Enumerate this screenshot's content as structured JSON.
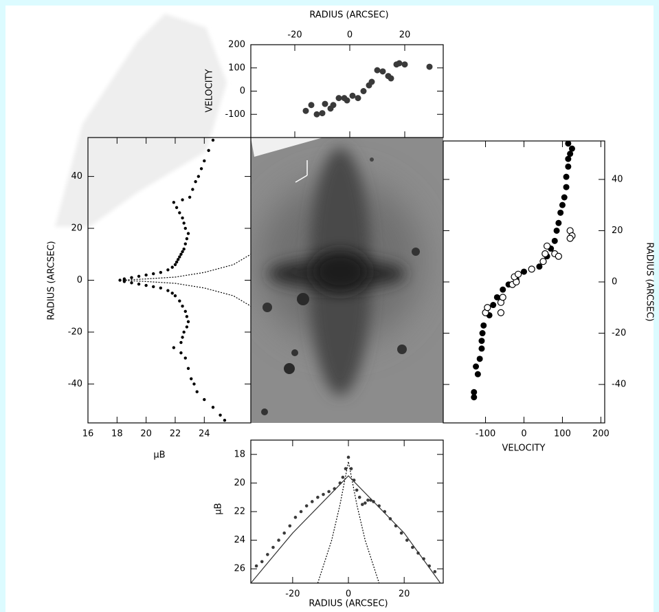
{
  "chart_data": [
    {
      "type": "scatter",
      "xlabel": "RADIUS (ARCSEC)",
      "ylabel": "VELOCITY",
      "xlim": [
        -36,
        34
      ],
      "ylim": [
        -200,
        200
      ],
      "xticks": [
        -20,
        0,
        20
      ],
      "yticks": [
        -100,
        0,
        100,
        200
      ],
      "xaxis": "top",
      "yaxis": "left",
      "series": [
        {
          "mode": "markers",
          "marker": "filled",
          "color": "#3a3a3a",
          "x": [
            -16,
            -14,
            -12,
            -10,
            -9,
            -7,
            -6,
            -4,
            -2,
            -1,
            1,
            3,
            5,
            7,
            8,
            10,
            12,
            14,
            15,
            17,
            18,
            20,
            29
          ],
          "y": [
            -85,
            -60,
            -100,
            -95,
            -55,
            -75,
            -60,
            -30,
            -30,
            -40,
            -20,
            -30,
            0,
            25,
            40,
            90,
            85,
            65,
            55,
            115,
            120,
            115,
            105
          ]
        }
      ]
    },
    {
      "type": "scatter",
      "xlabel": "μB",
      "ylabel": "RADIUS (ARCSEC)",
      "xlim": [
        16,
        27.2
      ],
      "ylim": [
        -55,
        55
      ],
      "xticks": [
        16,
        18,
        20,
        22,
        24
      ],
      "yticks": [
        -40,
        -20,
        0,
        20,
        40
      ],
      "xaxis": "bottom",
      "yaxis": "left",
      "series": [
        {
          "mode": "markers",
          "marker": "filled",
          "color": "#000000",
          "x": [
            18.2,
            18.5,
            19,
            19.5,
            20,
            20.5,
            21,
            21.5,
            21.8,
            22,
            22.1,
            22.2,
            22.3,
            22.4,
            22.5,
            22.6,
            22.7,
            22.8,
            22.9,
            22.7,
            22.6,
            22.5,
            22.3,
            22.1,
            21.9,
            22.5,
            23,
            23.2,
            23.4,
            23.6,
            23.8,
            24,
            24.3,
            24.6,
            18.5,
            19,
            19.5,
            20,
            20.5,
            21,
            21.5,
            21.8,
            22,
            22.3,
            22.5,
            22.7,
            22.8,
            22.9,
            22.8,
            22.6,
            22.5,
            22.4,
            21.9,
            22.4,
            22.7,
            22.9,
            23.1,
            23.3,
            23.5,
            24,
            24.6,
            25.1,
            25.4
          ],
          "y": [
            0,
            0.5,
            1,
            1.5,
            2,
            2.5,
            3,
            4,
            5,
            6,
            7,
            8,
            9,
            10,
            11,
            12,
            14,
            16,
            18,
            20,
            22,
            24,
            26,
            28,
            30,
            31,
            32,
            35,
            38,
            40,
            43,
            46,
            50,
            54,
            -0.5,
            -1,
            -1.5,
            -2,
            -2.5,
            -3,
            -4,
            -5,
            -6,
            -8,
            -10,
            -12,
            -14,
            -16,
            -18,
            -20,
            -22,
            -24,
            -26,
            -28,
            -30,
            -34,
            -38,
            -40,
            -43,
            -46,
            -49,
            -52,
            -54
          ]
        },
        {
          "mode": "line",
          "dash": "dotted",
          "color": "#000000",
          "x": [
            18.2,
            20,
            22,
            24,
            26,
            27.2
          ],
          "y": [
            0,
            0.5,
            1.2,
            3,
            6,
            10
          ]
        },
        {
          "mode": "line",
          "dash": "dotted",
          "color": "#000000",
          "x": [
            18.2,
            20,
            22,
            24,
            26,
            27.2
          ],
          "y": [
            0,
            -0.5,
            -1.2,
            -3,
            -6,
            -10
          ]
        }
      ]
    },
    {
      "type": "scatter",
      "xlabel": "VELOCITY",
      "ylabel": "RADIUS (ARCSEC)",
      "xlim": [
        -210,
        210
      ],
      "ylim": [
        -55,
        55
      ],
      "xticks": [
        -100,
        0,
        100,
        200
      ],
      "yticks": [
        -40,
        -20,
        0,
        20,
        40
      ],
      "xaxis": "bottom",
      "yaxis": "right",
      "series": [
        {
          "mode": "markers",
          "marker": "filled",
          "color": "#000000",
          "x": [
            -130,
            -130,
            -120,
            -125,
            -115,
            -110,
            -110,
            -108,
            -105,
            -90,
            -80,
            -70,
            -55,
            -40,
            -20,
            0,
            20,
            40,
            50,
            60,
            70,
            80,
            85,
            90,
            95,
            100,
            105,
            110,
            110,
            115,
            115,
            120,
            125,
            115
          ],
          "y": [
            -45,
            -43,
            -36,
            -33,
            -30,
            -26,
            -23,
            -20,
            -17,
            -13,
            -9,
            -6,
            -3,
            -1,
            1,
            4,
            5,
            6,
            8,
            10,
            13,
            16,
            20,
            23,
            27,
            30,
            33,
            37,
            41,
            45,
            48,
            50,
            52,
            54
          ]
        },
        {
          "mode": "markers",
          "marker": "open",
          "color": "#000000",
          "x": [
            -100,
            -95,
            -60,
            -60,
            -55,
            -30,
            -20,
            -25,
            -15,
            20,
            50,
            55,
            60,
            80,
            90,
            120,
            125,
            120
          ],
          "y": [
            -12,
            -10,
            -12,
            -8,
            -6,
            -1,
            0,
            2,
            3,
            5,
            8,
            11,
            14,
            11,
            10,
            20,
            18,
            17
          ]
        }
      ]
    },
    {
      "type": "scatter",
      "xlabel": "RADIUS (ARCSEC)",
      "ylabel": "μB",
      "xlim": [
        -35,
        34
      ],
      "ylim": [
        27,
        17
      ],
      "xticks": [
        -20,
        0,
        20
      ],
      "yticks": [
        18,
        20,
        22,
        24,
        26
      ],
      "xaxis": "bottom",
      "yaxis": "left",
      "series": [
        {
          "mode": "markers",
          "marker": "filled",
          "color": "#3a3a3a",
          "x": [
            -33,
            -31,
            -29,
            -27,
            -25,
            -23,
            -21,
            -19,
            -17,
            -15,
            -13,
            -11,
            -9,
            -7,
            -5,
            -3,
            -2,
            -1,
            0,
            1,
            2,
            3,
            4,
            5,
            6,
            7,
            8,
            9,
            11,
            13,
            15,
            17,
            19,
            21,
            23,
            25,
            27,
            29,
            31
          ],
          "y": [
            25.8,
            25.5,
            25,
            24.5,
            24,
            23.5,
            23,
            22.4,
            22,
            21.6,
            21.3,
            21,
            20.8,
            20.6,
            20.4,
            20,
            19.6,
            19,
            18.2,
            19,
            19.8,
            20.5,
            21,
            21.5,
            21.4,
            21.2,
            21.2,
            21.3,
            21.6,
            22,
            22.5,
            23,
            23.5,
            24,
            24.5,
            24.9,
            25.3,
            25.8,
            26.2
          ]
        },
        {
          "mode": "line",
          "dash": "solid",
          "color": "#333333",
          "x": [
            -35,
            -20,
            -5,
            0,
            5,
            20,
            33
          ],
          "y": [
            27,
            23.5,
            20.5,
            19.5,
            20.5,
            23.5,
            27
          ]
        },
        {
          "mode": "line",
          "dash": "dotted",
          "color": "#000000",
          "x": [
            -11,
            -6,
            -3,
            -1,
            0,
            1,
            3,
            6,
            11
          ],
          "y": [
            27,
            24,
            21.5,
            19.5,
            18.5,
            19.5,
            21.5,
            24,
            27
          ]
        }
      ]
    }
  ]
}
